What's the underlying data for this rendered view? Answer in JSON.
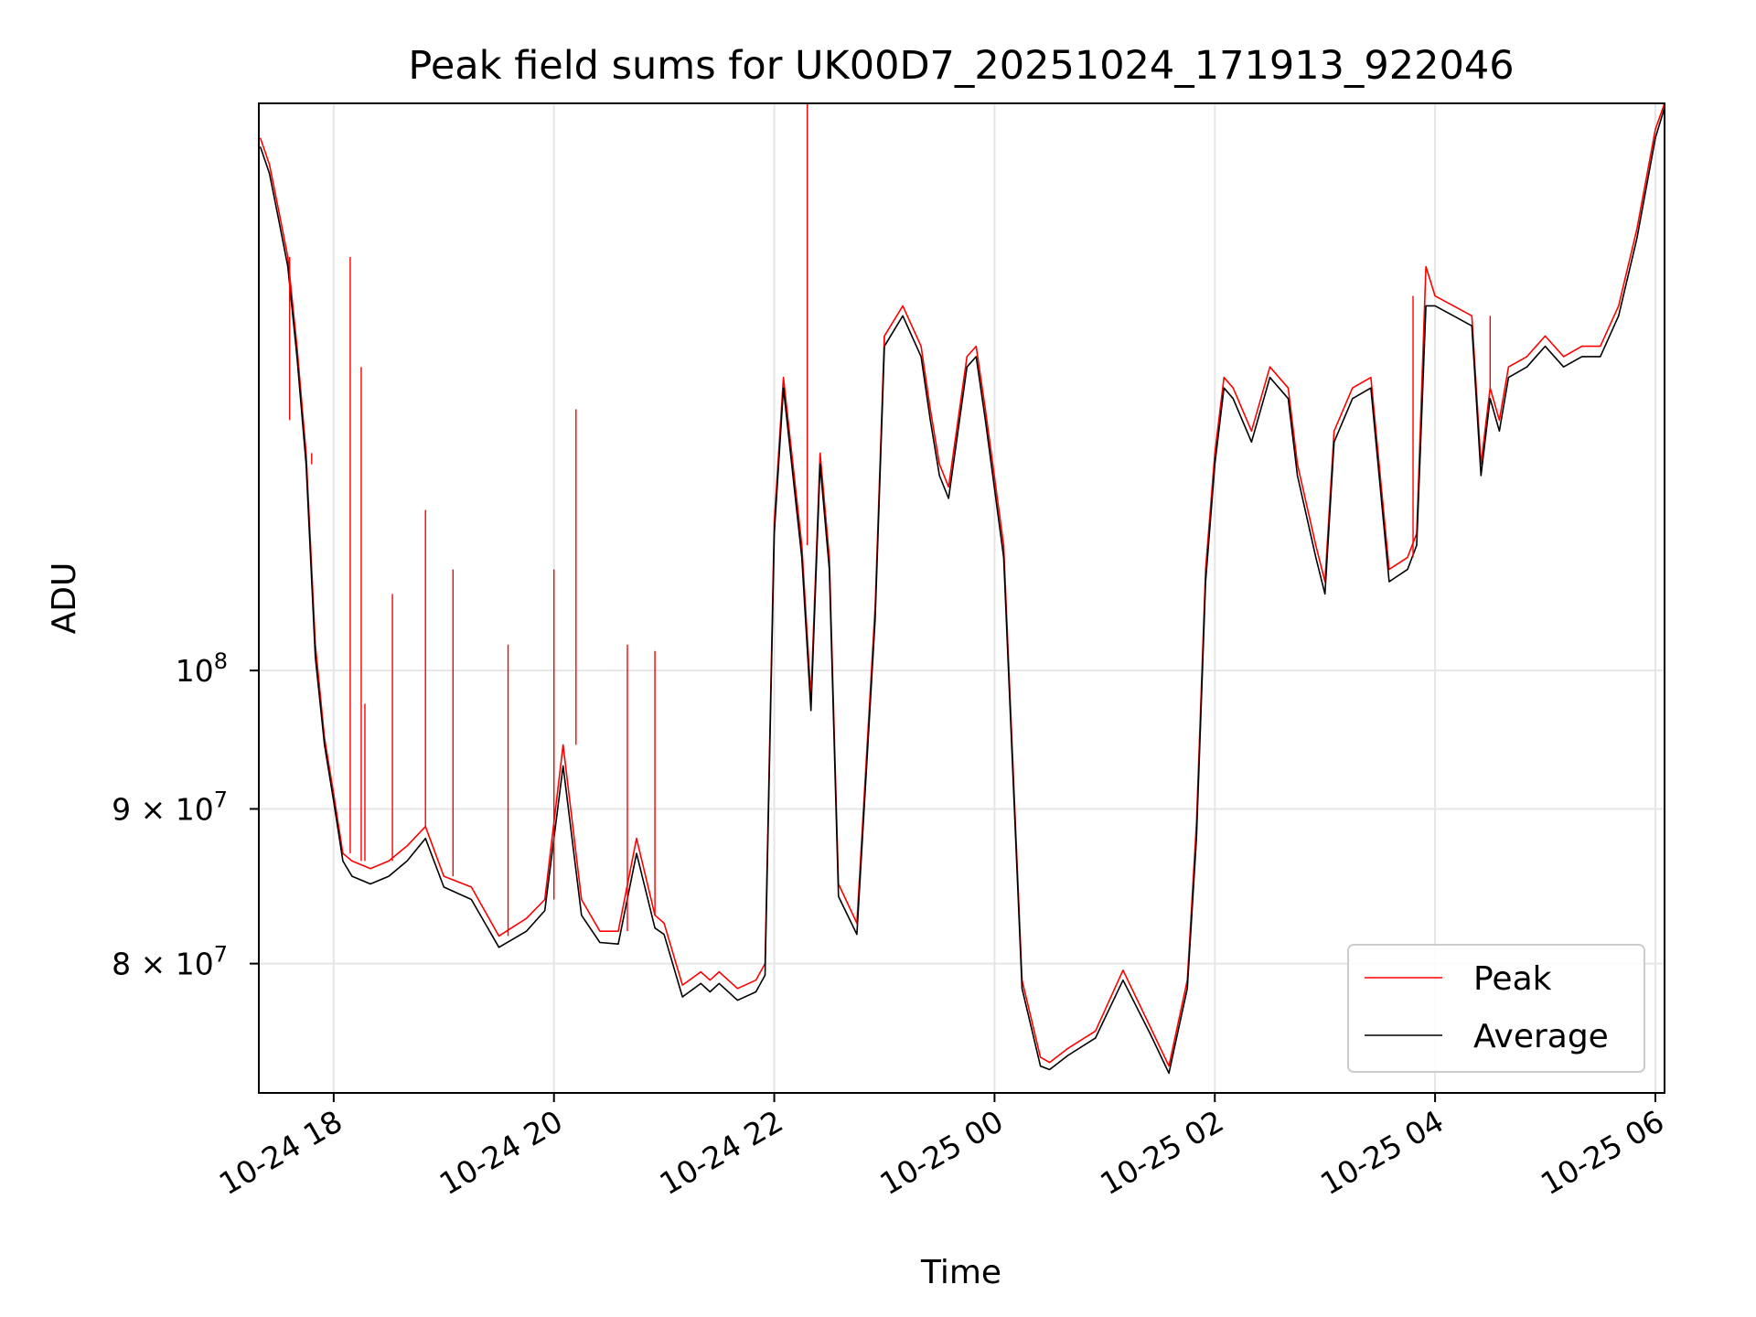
{
  "chart_data": {
    "type": "line",
    "title": "Peak field sums for UK00D7_20251024_171913_922046",
    "xlabel": "Time",
    "ylabel": "ADU",
    "yscale": "log",
    "grid": true,
    "legend_position": "lower-right",
    "xlim": [
      "2025-10-24T17:19:13",
      "2025-10-25T06:05:00"
    ],
    "ylim": [
      72500000,
      154000000
    ],
    "x_ticks": [
      {
        "value": "2025-10-24T18:00:00",
        "label": "10-24 18"
      },
      {
        "value": "2025-10-24T20:00:00",
        "label": "10-24 20"
      },
      {
        "value": "2025-10-24T22:00:00",
        "label": "10-24 22"
      },
      {
        "value": "2025-10-25T00:00:00",
        "label": "10-25 00"
      },
      {
        "value": "2025-10-25T02:00:00",
        "label": "10-25 02"
      },
      {
        "value": "2025-10-25T04:00:00",
        "label": "10-25 04"
      },
      {
        "value": "2025-10-25T06:00:00",
        "label": "10-25 06"
      }
    ],
    "y_ticks": [
      {
        "value": 80000000,
        "label": "8 × 10",
        "exp": "7"
      },
      {
        "value": 90000000,
        "label": "9 × 10",
        "exp": "7"
      },
      {
        "value": 100000000,
        "label": "10",
        "exp": "8"
      }
    ],
    "x": [
      "2025-10-24T17:20:00",
      "2025-10-24T17:25:00",
      "2025-10-24T17:30:00",
      "2025-10-24T17:35:00",
      "2025-10-24T17:40:00",
      "2025-10-24T17:45:00",
      "2025-10-24T17:50:00",
      "2025-10-24T17:55:00",
      "2025-10-24T18:00:00",
      "2025-10-24T18:05:00",
      "2025-10-24T18:10:00",
      "2025-10-24T18:20:00",
      "2025-10-24T18:30:00",
      "2025-10-24T18:40:00",
      "2025-10-24T18:50:00",
      "2025-10-24T19:00:00",
      "2025-10-24T19:15:00",
      "2025-10-24T19:30:00",
      "2025-10-24T19:45:00",
      "2025-10-24T19:55:00",
      "2025-10-24T20:05:00",
      "2025-10-24T20:15:00",
      "2025-10-24T20:25:00",
      "2025-10-24T20:35:00",
      "2025-10-24T20:45:00",
      "2025-10-24T20:55:00",
      "2025-10-24T21:00:00",
      "2025-10-24T21:10:00",
      "2025-10-24T21:20:00",
      "2025-10-24T21:25:00",
      "2025-10-24T21:30:00",
      "2025-10-24T21:40:00",
      "2025-10-24T21:50:00",
      "2025-10-24T21:55:00",
      "2025-10-24T22:00:00",
      "2025-10-24T22:05:00",
      "2025-10-24T22:15:00",
      "2025-10-24T22:20:00",
      "2025-10-24T22:25:00",
      "2025-10-24T22:30:00",
      "2025-10-24T22:35:00",
      "2025-10-24T22:45:00",
      "2025-10-24T22:55:00",
      "2025-10-24T23:00:00",
      "2025-10-24T23:10:00",
      "2025-10-24T23:20:00",
      "2025-10-24T23:25:00",
      "2025-10-24T23:30:00",
      "2025-10-24T23:35:00",
      "2025-10-24T23:45:00",
      "2025-10-24T23:50:00",
      "2025-10-24T23:55:00",
      "2025-10-25T00:05:00",
      "2025-10-25T00:15:00",
      "2025-10-25T00:25:00",
      "2025-10-25T00:30:00",
      "2025-10-25T00:40:00",
      "2025-10-25T00:55:00",
      "2025-10-25T01:10:00",
      "2025-10-25T01:25:00",
      "2025-10-25T01:35:00",
      "2025-10-25T01:45:00",
      "2025-10-25T01:50:00",
      "2025-10-25T01:55:00",
      "2025-10-25T02:00:00",
      "2025-10-25T02:05:00",
      "2025-10-25T02:10:00",
      "2025-10-25T02:20:00",
      "2025-10-25T02:30:00",
      "2025-10-25T02:40:00",
      "2025-10-25T02:45:00",
      "2025-10-25T02:55:00",
      "2025-10-25T03:00:00",
      "2025-10-25T03:05:00",
      "2025-10-25T03:15:00",
      "2025-10-25T03:25:00",
      "2025-10-25T03:35:00",
      "2025-10-25T03:45:00",
      "2025-10-25T03:50:00",
      "2025-10-25T03:55:00",
      "2025-10-25T04:00:00",
      "2025-10-25T04:10:00",
      "2025-10-25T04:20:00",
      "2025-10-25T04:25:00",
      "2025-10-25T04:30:00",
      "2025-10-25T04:35:00",
      "2025-10-25T04:40:00",
      "2025-10-25T04:50:00",
      "2025-10-25T05:00:00",
      "2025-10-25T05:10:00",
      "2025-10-25T05:20:00",
      "2025-10-25T05:30:00",
      "2025-10-25T05:40:00",
      "2025-10-25T05:50:00",
      "2025-10-25T06:00:00",
      "2025-10-25T06:05:00"
    ],
    "series": [
      {
        "name": "Peak",
        "color": "#ff0000",
        "values": [
          150000000,
          147000000,
          142000000,
          137000000,
          128000000,
          118000000,
          102000000,
          95000000,
          91000000,
          87000000,
          86500000,
          86000000,
          86500000,
          87500000,
          88800000,
          85500000,
          84800000,
          81700000,
          82800000,
          84000000,
          94500000,
          84000000,
          82000000,
          82000000,
          88000000,
          83000000,
          82500000,
          78700000,
          79500000,
          79000000,
          79500000,
          78500000,
          79000000,
          80000000,
          112000000,
          125000000,
          110000000,
          98000000,
          118000000,
          109000000,
          85000000,
          82500000,
          105000000,
          129000000,
          132000000,
          128000000,
          122000000,
          117000000,
          115000000,
          127000000,
          128000000,
          122000000,
          110000000,
          79000000,
          74500000,
          74200000,
          75000000,
          76000000,
          79600000,
          76200000,
          74000000,
          79000000,
          89000000,
          108000000,
          118000000,
          125000000,
          124000000,
          120000000,
          126000000,
          124000000,
          117000000,
          110000000,
          107000000,
          120000000,
          124000000,
          125000000,
          108000000,
          109000000,
          111000000,
          136000000,
          133000000,
          132000000,
          131000000,
          117000000,
          124000000,
          121000000,
          126000000,
          127000000,
          129000000,
          127000000,
          128000000,
          128000000,
          132000000,
          140000000,
          151000000,
          154000000
        ]
      },
      {
        "name": "Average",
        "color": "#000000",
        "values": [
          149000000,
          146000000,
          141000000,
          136000000,
          127000000,
          117000000,
          101000000,
          94500000,
          90500000,
          86500000,
          85500000,
          85000000,
          85500000,
          86500000,
          88000000,
          84800000,
          84000000,
          81000000,
          82000000,
          83300000,
          93000000,
          83000000,
          81300000,
          81200000,
          87000000,
          82200000,
          81800000,
          78000000,
          78800000,
          78300000,
          78800000,
          77800000,
          78300000,
          79300000,
          111000000,
          124000000,
          109000000,
          97000000,
          117000000,
          108000000,
          84200000,
          81800000,
          104000000,
          128000000,
          131000000,
          127000000,
          121000000,
          116000000,
          114000000,
          126000000,
          127000000,
          121000000,
          109000000,
          78500000,
          74000000,
          73800000,
          74600000,
          75600000,
          79000000,
          75800000,
          73600000,
          78500000,
          88000000,
          107000000,
          117000000,
          124000000,
          123000000,
          119000000,
          125000000,
          123000000,
          116000000,
          109000000,
          106000000,
          119000000,
          123000000,
          124000000,
          107000000,
          108000000,
          110000000,
          132000000,
          132000000,
          131000000,
          130000000,
          116000000,
          123000000,
          120000000,
          125000000,
          126000000,
          128000000,
          126000000,
          127000000,
          127000000,
          131000000,
          139000000,
          150000000,
          153500000
        ]
      }
    ],
    "peak_spikes": [
      {
        "x": "2025-10-24T17:36:00",
        "y": 121000000
      },
      {
        "x": "2025-10-24T17:48:00",
        "y": 117000000
      },
      {
        "x": "2025-10-24T18:09:00",
        "y": 137000000
      },
      {
        "x": "2025-10-24T18:15:00",
        "y": 126000000
      },
      {
        "x": "2025-10-24T18:17:00",
        "y": 97500000
      },
      {
        "x": "2025-10-24T18:32:00",
        "y": 106000000
      },
      {
        "x": "2025-10-24T18:50:00",
        "y": 113000000
      },
      {
        "x": "2025-10-24T19:05:00",
        "y": 108000000
      },
      {
        "x": "2025-10-24T19:35:00",
        "y": 102000000
      },
      {
        "x": "2025-10-24T20:00:00",
        "y": 108000000
      },
      {
        "x": "2025-10-24T20:12:00",
        "y": 122000000
      },
      {
        "x": "2025-10-24T20:40:00",
        "y": 102000000
      },
      {
        "x": "2025-10-24T20:55:00",
        "y": 101500000
      },
      {
        "x": "2025-10-24T22:18:00",
        "y": 154000000
      },
      {
        "x": "2025-10-24T23:00:00",
        "y": 128000000
      },
      {
        "x": "2025-10-25T03:48:00",
        "y": 133000000
      },
      {
        "x": "2025-10-25T04:30:00",
        "y": 131000000
      }
    ]
  },
  "legend": {
    "peak_label": "Peak",
    "average_label": "Average"
  }
}
